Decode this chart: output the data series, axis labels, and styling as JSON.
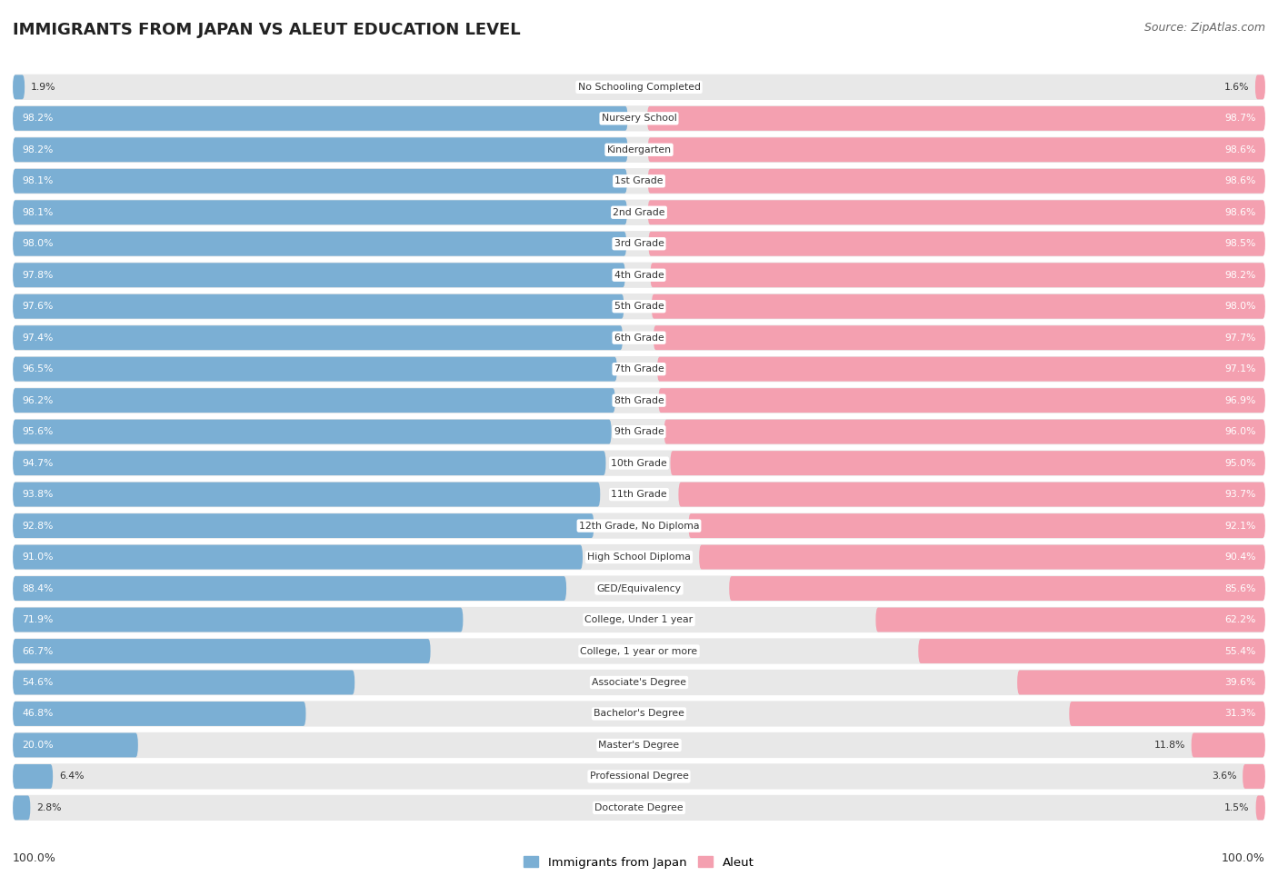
{
  "title": "IMMIGRANTS FROM JAPAN VS ALEUT EDUCATION LEVEL",
  "source": "Source: ZipAtlas.com",
  "categories": [
    "No Schooling Completed",
    "Nursery School",
    "Kindergarten",
    "1st Grade",
    "2nd Grade",
    "3rd Grade",
    "4th Grade",
    "5th Grade",
    "6th Grade",
    "7th Grade",
    "8th Grade",
    "9th Grade",
    "10th Grade",
    "11th Grade",
    "12th Grade, No Diploma",
    "High School Diploma",
    "GED/Equivalency",
    "College, Under 1 year",
    "College, 1 year or more",
    "Associate's Degree",
    "Bachelor's Degree",
    "Master's Degree",
    "Professional Degree",
    "Doctorate Degree"
  ],
  "japan_values": [
    1.9,
    98.2,
    98.2,
    98.1,
    98.1,
    98.0,
    97.8,
    97.6,
    97.4,
    96.5,
    96.2,
    95.6,
    94.7,
    93.8,
    92.8,
    91.0,
    88.4,
    71.9,
    66.7,
    54.6,
    46.8,
    20.0,
    6.4,
    2.8
  ],
  "aleut_values": [
    1.6,
    98.7,
    98.6,
    98.6,
    98.6,
    98.5,
    98.2,
    98.0,
    97.7,
    97.1,
    96.9,
    96.0,
    95.0,
    93.7,
    92.1,
    90.4,
    85.6,
    62.2,
    55.4,
    39.6,
    31.3,
    11.8,
    3.6,
    1.5
  ],
  "japan_color": "#7bafd4",
  "aleut_color": "#f4a0b0",
  "row_bg_color": "#e8e8e8",
  "label_threshold": 15.0,
  "legend_japan": "Immigrants from Japan",
  "legend_aleut": "Aleut",
  "axis_label": "100.0%"
}
